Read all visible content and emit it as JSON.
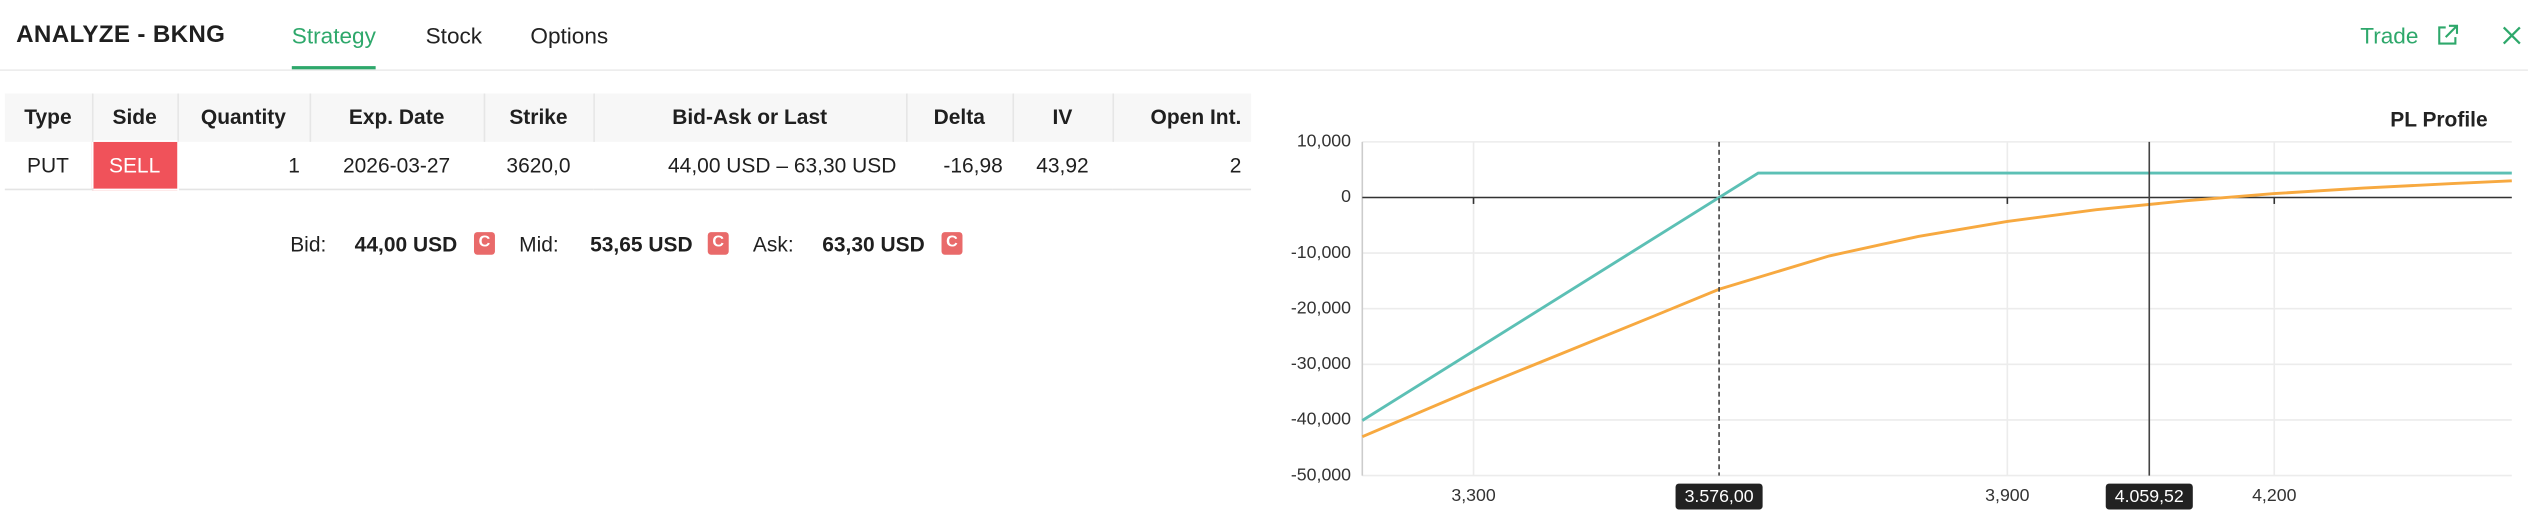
{
  "header": {
    "title": "ANALYZE - BKNG",
    "tabs": [
      "Strategy",
      "Stock",
      "Options"
    ],
    "active_tab": 0,
    "action": "Trade"
  },
  "table": {
    "columns": [
      "Type",
      "Side",
      "Quantity",
      "Exp. Date",
      "Strike",
      "Bid-Ask or Last",
      "Delta",
      "IV",
      "Open Int."
    ],
    "rows": [
      [
        "PUT",
        "SELL",
        "1",
        "2026-03-27",
        "3620,0",
        "44,00 USD – 63,30 USD",
        "-16,98",
        "43,92",
        "2"
      ]
    ]
  },
  "quotes": [
    {
      "label": "Bid:",
      "value": "44,00 USD",
      "badge": "C"
    },
    {
      "label": "Mid:",
      "value": "53,65 USD",
      "badge": "C"
    },
    {
      "label": "Ask:",
      "value": "63,30 USD",
      "badge": "C"
    }
  ],
  "chart_data": {
    "type": "line",
    "title": "PL Profile",
    "xlim": [
      3175,
      4467
    ],
    "ylim": [
      -50000,
      10000
    ],
    "xticks": [
      {
        "value": 3300,
        "label": "3,300"
      },
      {
        "value": 3900,
        "label": "3,900"
      },
      {
        "value": 4200,
        "label": "4,200"
      }
    ],
    "yticks": [
      {
        "value": 10000,
        "label": "10,000"
      },
      0,
      {
        "value": -10000,
        "label": "-10,000"
      },
      {
        "value": -20000,
        "label": "-20,000"
      },
      {
        "value": -30000,
        "label": "-30,000"
      },
      {
        "value": -40000,
        "label": "-40,000"
      },
      {
        "value": -50000,
        "label": "-50,000"
      }
    ],
    "grid": true,
    "markers": [
      {
        "value": 3576,
        "label": "3.576,00",
        "style": "dashed"
      },
      {
        "value": 4059.52,
        "label": "4.059,52",
        "style": "solid"
      }
    ],
    "series": [
      {
        "color": "#5cc0b5",
        "x": [
          3175,
          3620,
          4467
        ],
        "values": [
          -40100,
          4400,
          4400
        ]
      },
      {
        "color": "#f7a940",
        "x": [
          3175,
          3300,
          3400,
          3500,
          3576,
          3700,
          3800,
          3900,
          4000,
          4100,
          4200,
          4300,
          4400,
          4467
        ],
        "values": [
          -43000,
          -34500,
          -28000,
          -21500,
          -16500,
          -10500,
          -7000,
          -4300,
          -2200,
          -600,
          700,
          1700,
          2500,
          3000
        ]
      }
    ]
  }
}
